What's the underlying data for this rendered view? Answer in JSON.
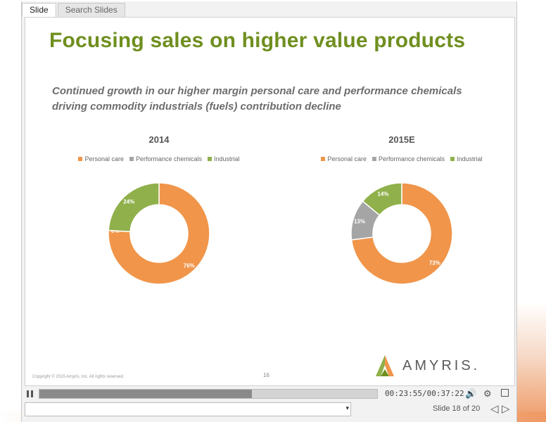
{
  "tabs": [
    "Slide",
    "Search Slides"
  ],
  "slide": {
    "title": "Focusing sales on higher value products",
    "subtitle_lines": [
      "Continued growth in our higher margin personal care and performance chemicals",
      "driving commodity industrials (fuels) contribution decline"
    ],
    "copyright": "Copyright © 2015 Amyris, Inc. All rights reserved.",
    "page_number": "16",
    "logo_text": "AMYRIS."
  },
  "chart_data": [
    {
      "type": "pie",
      "title": "2014",
      "legend": [
        "Personal care",
        "Performance chemicals",
        "Industrial"
      ],
      "categories": [
        "Personal care",
        "Performance chemicals",
        "Industrial"
      ],
      "values": [
        76,
        0,
        24
      ],
      "labels": [
        "76%",
        "0%",
        "24%"
      ],
      "colors": [
        "#f0954a",
        "#a5a5a5",
        "#8fb04a"
      ]
    },
    {
      "type": "pie",
      "title": "2015E",
      "legend": [
        "Personal care",
        "Performance chemicals",
        "Industrial"
      ],
      "categories": [
        "Personal care",
        "Performance chemicals",
        "Industrial"
      ],
      "values": [
        73,
        13,
        14
      ],
      "labels": [
        "73%",
        "13%",
        "14%"
      ],
      "colors": [
        "#f0954a",
        "#a5a5a5",
        "#8fb04a"
      ]
    }
  ],
  "player": {
    "progress": 0.63,
    "time": "00:23:55/00:37:22",
    "slide_counter": "Slide 18 of 20",
    "dropdown_arrow": "▾",
    "prev_glyph": "◁",
    "next_glyph": "▷",
    "volume_glyph": "🔊",
    "settings_glyph": "⚙",
    "icons": [
      "pause-icon",
      "volume-icon",
      "settings-icon",
      "notes-icon",
      "prev-slide-icon",
      "next-slide-icon"
    ]
  }
}
